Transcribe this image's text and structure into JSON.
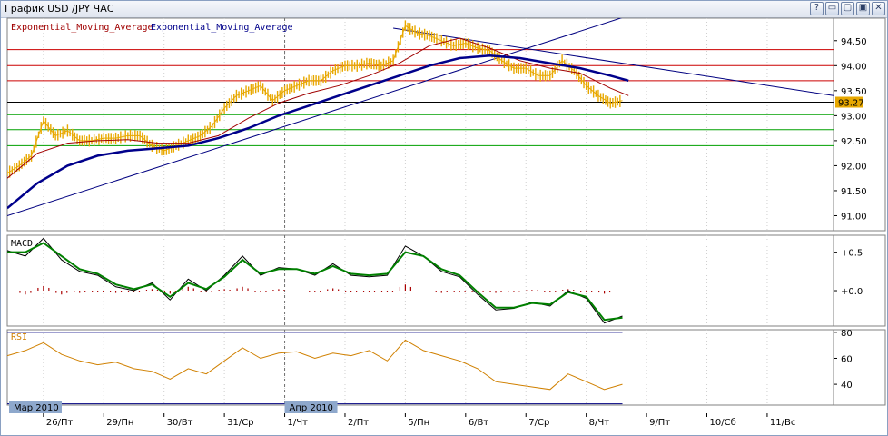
{
  "window": {
    "title": "График USD /JPY  ЧАС",
    "buttons": [
      "?",
      "▭",
      "▢",
      "▣",
      "✕"
    ]
  },
  "colors": {
    "price": "#e8a800",
    "ema_fast": "#a00000",
    "ema_slow": "#00008b",
    "resistance": "#cc0000",
    "support": "#00a000",
    "trend": "#000080",
    "macd": "#000000",
    "signal": "#008000",
    "histogram": "#aa0000",
    "rsi": "#d08000",
    "badge": "#e8a800"
  },
  "chart_data": [
    {
      "type": "line",
      "panel": "price",
      "title": "",
      "legend": [
        "Exponential_Moving_Average",
        "Exponential_Moving_Average"
      ],
      "legend_placement": "top-left",
      "ylim": [
        90.7,
        94.95
      ],
      "yticks": [
        "94.50",
        "94.00",
        "93.50",
        "93.00",
        "92.50",
        "92.00",
        "91.50",
        "91.00"
      ],
      "ytick_values": [
        94.5,
        94.0,
        93.5,
        93.0,
        92.5,
        92.0,
        91.5,
        91.0
      ],
      "current_price": "93.27",
      "xlim": [
        0,
        13.7
      ],
      "xticks": [
        "26/Пт",
        "29/Пн",
        "30/Вт",
        "31/Ср",
        "1/Чт",
        "2/Пт",
        "5/Пн",
        "6/Вт",
        "7/Ср",
        "8/Чт",
        "9/Пт",
        "10/Сб",
        "11/Вс"
      ],
      "xtick_values": [
        0.6,
        1.6,
        2.6,
        3.6,
        4.6,
        5.6,
        6.6,
        7.6,
        8.6,
        9.6,
        10.6,
        11.6,
        12.6
      ],
      "month_labels": [
        {
          "label": "Мар 2010",
          "x": 0.0
        },
        {
          "label": "Апр 2010",
          "x": 4.6
        }
      ],
      "month_divider_x": 4.6,
      "resistance_levels": [
        94.32,
        94.0,
        93.7
      ],
      "support_levels": [
        93.02,
        92.72,
        92.4
      ],
      "reference_level": 93.27,
      "trendlines": [
        {
          "x": [
            0.0,
            10.3
          ],
          "y": [
            91.0,
            95.0
          ]
        },
        {
          "x": [
            6.4,
            13.7
          ],
          "y": [
            94.75,
            93.4
          ]
        }
      ],
      "price_series": {
        "x": [
          0.0,
          0.2,
          0.4,
          0.6,
          0.8,
          1.0,
          1.2,
          1.4,
          1.6,
          1.8,
          2.0,
          2.2,
          2.4,
          2.6,
          2.8,
          3.0,
          3.2,
          3.4,
          3.6,
          3.8,
          4.0,
          4.2,
          4.4,
          4.6,
          4.8,
          5.0,
          5.2,
          5.4,
          5.6,
          5.8,
          6.0,
          6.2,
          6.4,
          6.6,
          6.8,
          7.0,
          7.2,
          7.4,
          7.6,
          7.8,
          8.0,
          8.2,
          8.4,
          8.6,
          8.8,
          9.0,
          9.2,
          9.4,
          9.6,
          9.8,
          10.0,
          10.2
        ],
        "y": [
          91.85,
          92.0,
          92.2,
          92.9,
          92.6,
          92.7,
          92.5,
          92.5,
          92.55,
          92.55,
          92.6,
          92.6,
          92.4,
          92.3,
          92.4,
          92.5,
          92.6,
          92.8,
          93.15,
          93.4,
          93.5,
          93.6,
          93.3,
          93.5,
          93.6,
          93.7,
          93.7,
          93.9,
          94.0,
          94.0,
          94.05,
          94.0,
          94.1,
          94.8,
          94.65,
          94.6,
          94.5,
          94.4,
          94.45,
          94.35,
          94.3,
          94.1,
          93.95,
          93.95,
          93.8,
          93.8,
          94.1,
          93.9,
          93.6,
          93.4,
          93.25,
          93.3
        ]
      },
      "ema_fast": {
        "x": [
          0.0,
          0.5,
          1.0,
          1.5,
          2.0,
          2.5,
          3.0,
          3.5,
          4.0,
          4.5,
          5.0,
          5.5,
          6.0,
          6.5,
          7.0,
          7.5,
          8.0,
          8.5,
          9.0,
          9.5,
          10.0,
          10.3
        ],
        "y": [
          91.75,
          92.25,
          92.45,
          92.5,
          92.52,
          92.45,
          92.45,
          92.6,
          92.95,
          93.25,
          93.45,
          93.6,
          93.8,
          94.05,
          94.4,
          94.55,
          94.35,
          94.1,
          93.95,
          93.85,
          93.55,
          93.4
        ]
      },
      "ema_slow": {
        "x": [
          0.0,
          0.5,
          1.0,
          1.5,
          2.0,
          2.5,
          3.0,
          3.5,
          4.0,
          4.5,
          5.0,
          5.5,
          6.0,
          6.5,
          7.0,
          7.5,
          8.0,
          8.5,
          9.0,
          9.5,
          10.0,
          10.3
        ],
        "y": [
          91.15,
          91.65,
          92.0,
          92.2,
          92.3,
          92.35,
          92.4,
          92.55,
          92.75,
          93.0,
          93.2,
          93.4,
          93.6,
          93.8,
          94.0,
          94.15,
          94.2,
          94.15,
          94.05,
          93.95,
          93.8,
          93.7
        ]
      }
    },
    {
      "type": "line",
      "panel": "macd",
      "title": "MACD",
      "ylim": [
        -0.46,
        0.72
      ],
      "yticks": [
        "+0.5",
        "+0.0"
      ],
      "ytick_values": [
        0.5,
        0.0
      ],
      "macd": {
        "x": [
          0.0,
          0.3,
          0.6,
          0.9,
          1.2,
          1.5,
          1.8,
          2.1,
          2.4,
          2.7,
          3.0,
          3.3,
          3.6,
          3.9,
          4.2,
          4.5,
          4.8,
          5.1,
          5.4,
          5.7,
          6.0,
          6.3,
          6.6,
          6.9,
          7.2,
          7.5,
          7.8,
          8.1,
          8.4,
          8.7,
          9.0,
          9.3,
          9.6,
          9.9,
          10.2
        ],
        "y": [
          0.52,
          0.45,
          0.68,
          0.4,
          0.25,
          0.2,
          0.05,
          0.0,
          0.1,
          -0.12,
          0.15,
          0.0,
          0.2,
          0.45,
          0.2,
          0.3,
          0.28,
          0.2,
          0.35,
          0.2,
          0.18,
          0.2,
          0.58,
          0.45,
          0.25,
          0.18,
          -0.05,
          -0.25,
          -0.23,
          -0.15,
          -0.2,
          0.0,
          -0.1,
          -0.42,
          -0.33
        ]
      },
      "signal": {
        "x": [
          0.0,
          0.3,
          0.6,
          0.9,
          1.2,
          1.5,
          1.8,
          2.1,
          2.4,
          2.7,
          3.0,
          3.3,
          3.6,
          3.9,
          4.2,
          4.5,
          4.8,
          5.1,
          5.4,
          5.7,
          6.0,
          6.3,
          6.6,
          6.9,
          7.2,
          7.5,
          7.8,
          8.1,
          8.4,
          8.7,
          9.0,
          9.3,
          9.6,
          9.9,
          10.2
        ],
        "y": [
          0.5,
          0.5,
          0.62,
          0.45,
          0.28,
          0.22,
          0.08,
          0.02,
          0.08,
          -0.08,
          0.1,
          0.02,
          0.18,
          0.4,
          0.22,
          0.28,
          0.28,
          0.22,
          0.32,
          0.22,
          0.2,
          0.22,
          0.5,
          0.45,
          0.28,
          0.2,
          -0.02,
          -0.22,
          -0.22,
          -0.16,
          -0.18,
          -0.02,
          -0.08,
          -0.38,
          -0.35
        ]
      },
      "histogram": {
        "x": [
          0.3,
          0.6,
          0.9,
          1.2,
          1.5,
          1.8,
          2.1,
          2.4,
          2.7,
          3.0,
          3.3,
          3.6,
          3.9,
          4.2,
          4.5,
          4.8,
          5.1,
          5.4,
          5.7,
          6.0,
          6.3,
          6.6,
          6.9,
          7.2,
          7.5,
          7.8,
          8.1,
          8.4,
          8.7,
          9.0,
          9.3,
          9.6,
          9.9
        ],
        "y": [
          -0.05,
          0.06,
          -0.05,
          -0.03,
          -0.02,
          -0.03,
          -0.02,
          0.02,
          -0.04,
          0.05,
          -0.02,
          0.02,
          0.05,
          -0.02,
          0.02,
          0.0,
          -0.02,
          0.03,
          -0.02,
          -0.02,
          -0.02,
          0.08,
          0.0,
          -0.03,
          -0.02,
          -0.03,
          -0.03,
          -0.01,
          0.01,
          -0.02,
          0.02,
          -0.02,
          -0.04
        ]
      }
    },
    {
      "type": "line",
      "panel": "rsi",
      "title": "RSI",
      "ylim": [
        24,
        82
      ],
      "yticks": [
        "80",
        "60",
        "40"
      ],
      "ytick_values": [
        80,
        60,
        40
      ],
      "levels": [
        80,
        25
      ],
      "rsi": {
        "x": [
          0.0,
          0.3,
          0.6,
          0.9,
          1.2,
          1.5,
          1.8,
          2.1,
          2.4,
          2.7,
          3.0,
          3.3,
          3.6,
          3.9,
          4.2,
          4.5,
          4.8,
          5.1,
          5.4,
          5.7,
          6.0,
          6.3,
          6.6,
          6.9,
          7.2,
          7.5,
          7.8,
          8.1,
          8.4,
          8.7,
          9.0,
          9.3,
          9.6,
          9.9,
          10.2
        ],
        "y": [
          62,
          66,
          72,
          63,
          58,
          55,
          57,
          52,
          50,
          44,
          52,
          48,
          58,
          68,
          60,
          64,
          65,
          60,
          64,
          62,
          66,
          58,
          74,
          66,
          62,
          58,
          52,
          42,
          40,
          38,
          36,
          48,
          42,
          36,
          40
        ]
      }
    }
  ]
}
